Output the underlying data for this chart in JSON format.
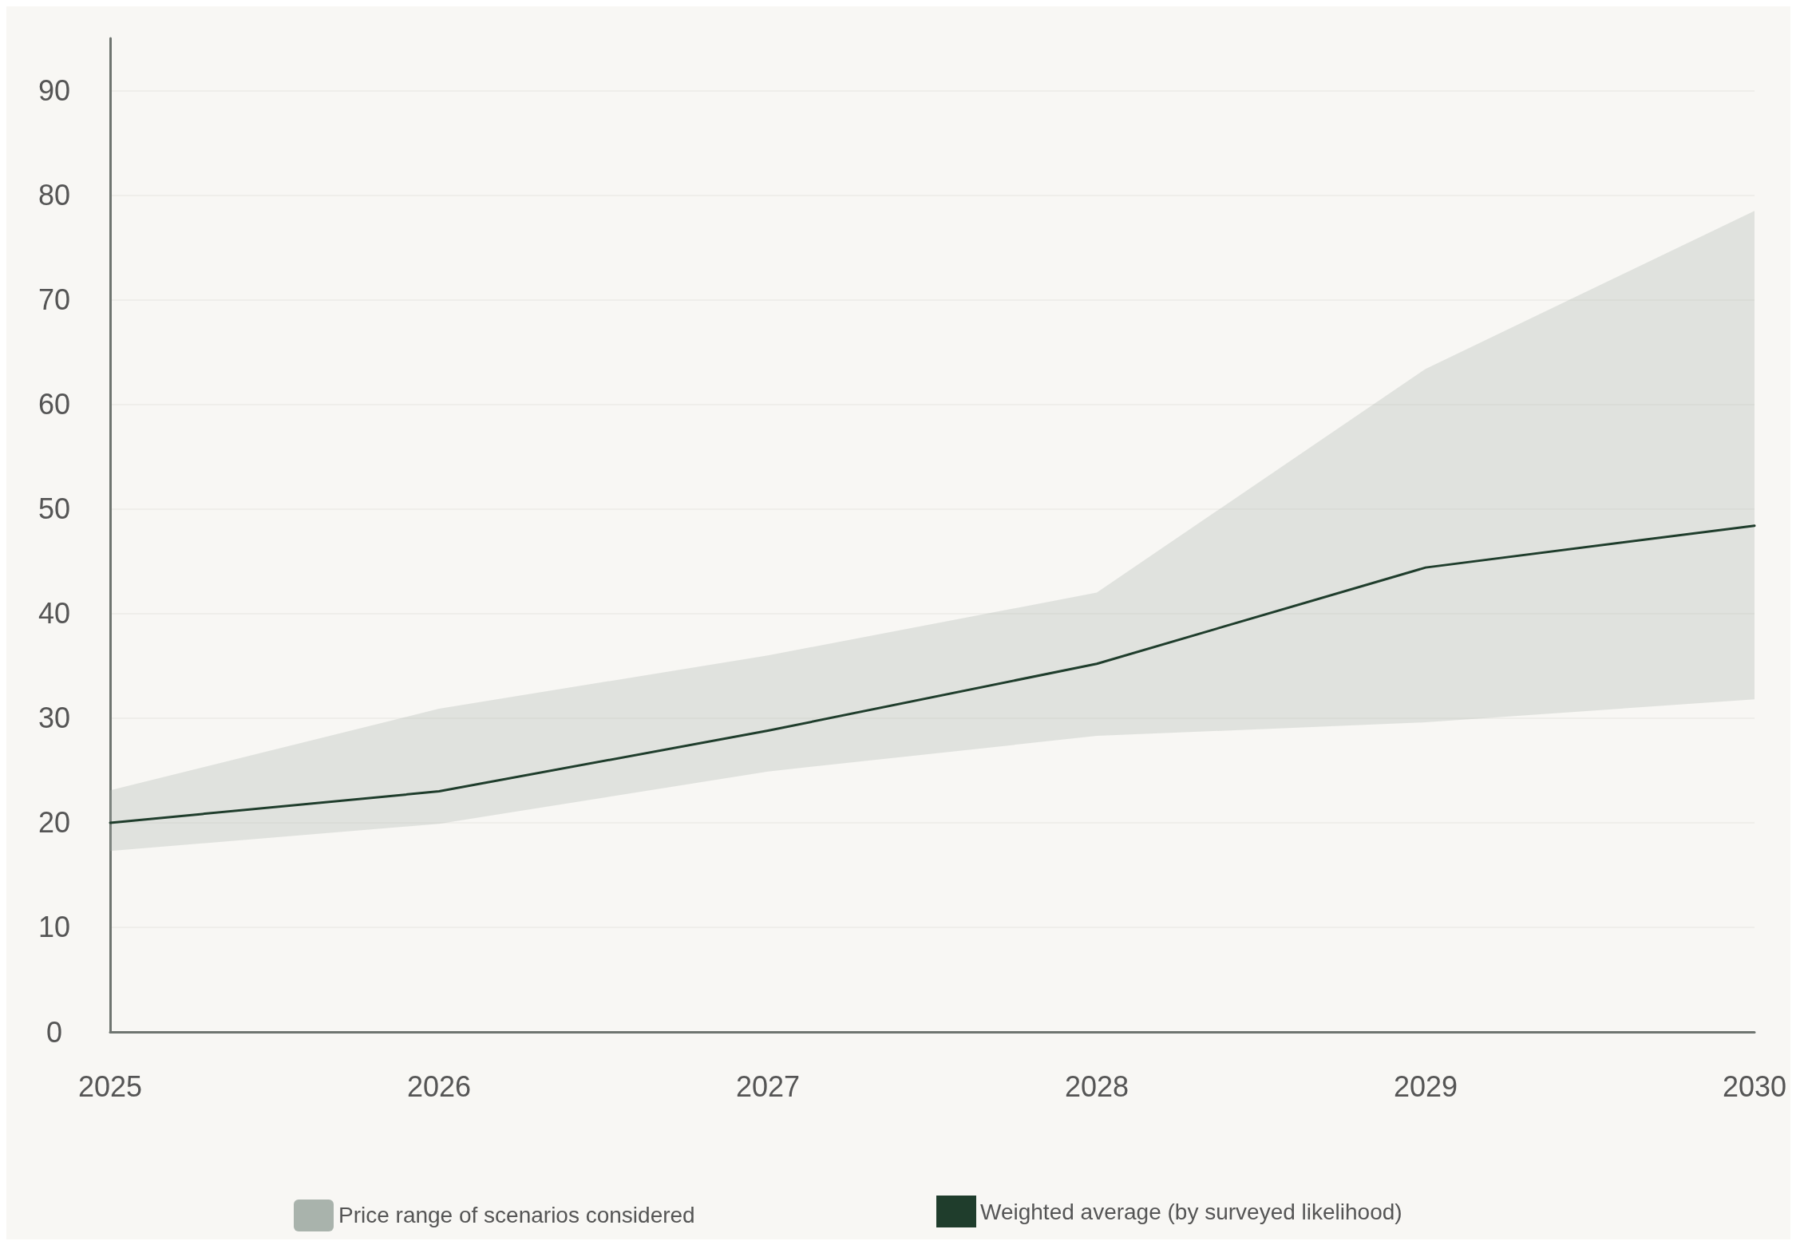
{
  "chart_data": {
    "type": "line",
    "categories": [
      "2025",
      "2026",
      "2027",
      "2028",
      "2029",
      "2030"
    ],
    "series": [
      {
        "name": "Weighted average (by surveyed likelihood)",
        "color": "#1f3d2c",
        "values": [
          20,
          23,
          28.8,
          35.2,
          44.4,
          48.4
        ],
        "lower": [
          17.3,
          19.9,
          24.9,
          28.3,
          29.6,
          31.8
        ],
        "upper": [
          23.1,
          30.9,
          36,
          42,
          63.4,
          78.5
        ]
      }
    ],
    "annotations": [
      "Price range of scenarios considered"
    ],
    "ylim": [
      0,
      95
    ],
    "yticks": [
      0,
      10,
      20,
      30,
      40,
      50,
      60,
      70,
      80,
      90
    ],
    "grid": "y",
    "legend": "bottom",
    "marker": "none",
    "line_style": "solid"
  }
}
